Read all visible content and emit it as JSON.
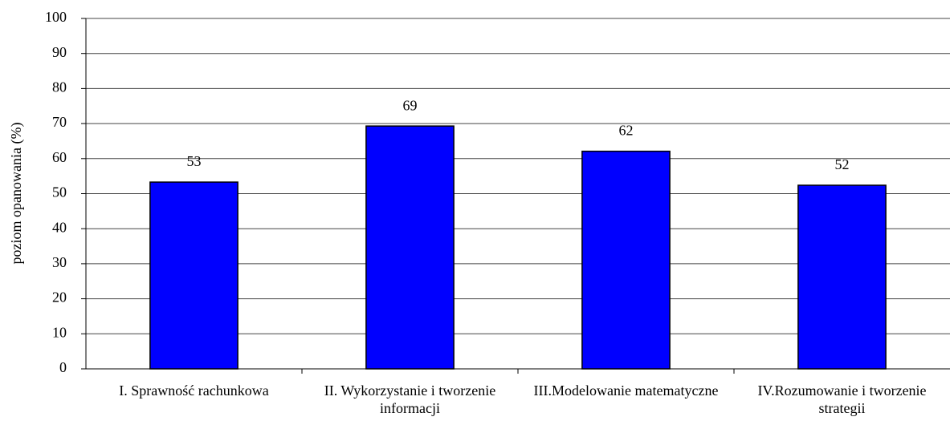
{
  "chart_data": {
    "type": "bar",
    "y_label": "poziom opanowania (%)",
    "categories": [
      "I. Sprawność rachunkowa",
      "II. Wykorzystanie i tworzenie informacji",
      "III.Modelowanie matematyczne",
      "IV.Rozumowanie i tworzenie strategii"
    ],
    "values": [
      53.3,
      69.3,
      62.1,
      52.4
    ],
    "value_labels": [
      "53",
      "69",
      "62",
      "52"
    ],
    "color": "#0000ff",
    "ylim": [
      0,
      100
    ],
    "yticks": [
      0,
      10,
      20,
      30,
      40,
      50,
      60,
      70,
      80,
      90,
      100
    ],
    "grid": true
  }
}
